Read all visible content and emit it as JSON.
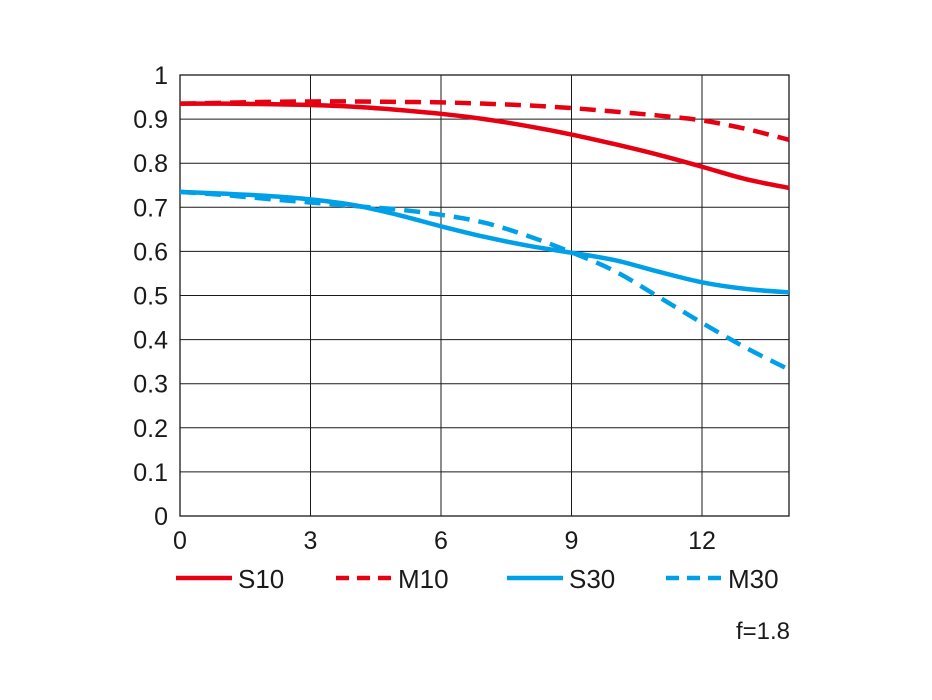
{
  "chart_data": {
    "type": "line",
    "xlim": [
      0,
      14
    ],
    "ylim": [
      0,
      1
    ],
    "x_ticks": [
      "0",
      "3",
      "6",
      "9",
      "12"
    ],
    "y_ticks": [
      "0",
      "0.1",
      "0.2",
      "0.3",
      "0.4",
      "0.5",
      "0.6",
      "0.7",
      "0.8",
      "0.9",
      "1"
    ],
    "grid": true,
    "legend_position": "bottom",
    "annotation": "f=1.8",
    "series": [
      {
        "name": "S10",
        "color": "#e50012",
        "dash": "solid",
        "x": [
          0,
          1,
          2,
          3,
          4,
          5,
          6,
          7,
          8,
          9,
          10,
          11,
          12,
          13,
          14
        ],
        "y": [
          0.935,
          0.935,
          0.934,
          0.932,
          0.928,
          0.921,
          0.912,
          0.9,
          0.884,
          0.865,
          0.843,
          0.819,
          0.792,
          0.764,
          0.744
        ]
      },
      {
        "name": "M10",
        "color": "#e50012",
        "dash": "dashed",
        "x": [
          0,
          1,
          2,
          3,
          4,
          5,
          6,
          7,
          8,
          9,
          10,
          11,
          12,
          13,
          14
        ],
        "y": [
          0.935,
          0.937,
          0.939,
          0.94,
          0.94,
          0.939,
          0.938,
          0.935,
          0.931,
          0.925,
          0.917,
          0.908,
          0.897,
          0.878,
          0.853
        ]
      },
      {
        "name": "S30",
        "color": "#00a0e9",
        "dash": "solid",
        "x": [
          0,
          1,
          2,
          3,
          4,
          5,
          6,
          7,
          8,
          9,
          10,
          11,
          12,
          13,
          14
        ],
        "y": [
          0.735,
          0.731,
          0.726,
          0.718,
          0.705,
          0.683,
          0.657,
          0.633,
          0.613,
          0.597,
          0.58,
          0.554,
          0.53,
          0.515,
          0.507
        ]
      },
      {
        "name": "M30",
        "color": "#00a0e9",
        "dash": "dashed",
        "x": [
          0,
          1,
          2,
          3,
          4,
          5,
          6,
          7,
          8,
          9,
          10,
          11,
          12,
          13,
          14
        ],
        "y": [
          0.735,
          0.728,
          0.719,
          0.711,
          0.703,
          0.695,
          0.683,
          0.665,
          0.635,
          0.598,
          0.555,
          0.497,
          0.438,
          0.382,
          0.332
        ]
      }
    ]
  }
}
